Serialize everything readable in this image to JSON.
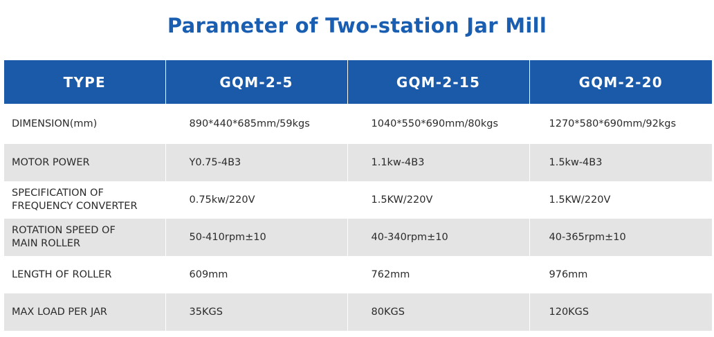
{
  "title": "Parameter of Two-station Jar Mill",
  "table": {
    "headers": [
      "TYPE",
      "GQM-2-5",
      "GQM-2-15",
      "GQM-2-20"
    ],
    "rows": [
      {
        "label": "DIMENSION(mm)",
        "values": [
          "890*440*685mm/59kgs",
          "1040*550*690mm/80kgs",
          "1270*580*690mm/92kgs"
        ]
      },
      {
        "label": "MOTOR POWER",
        "values": [
          "Y0.75-4B3",
          "1.1kw-4B3",
          "1.5kw-4B3"
        ]
      },
      {
        "label": "SPECIFICATION OF FREQUENCY CONVERTER",
        "label_lines": [
          "SPECIFICATION OF",
          "FREQUENCY CONVERTER"
        ],
        "values": [
          "0.75kw/220V",
          "1.5KW/220V",
          "1.5KW/220V"
        ]
      },
      {
        "label": "ROTATION SPEED OF MAIN ROLLER",
        "label_lines": [
          "ROTATION SPEED OF",
          "MAIN ROLLER"
        ],
        "values": [
          "50-410rpm±10",
          "40-340rpm±10",
          "40-365rpm±10"
        ]
      },
      {
        "label": "LENGTH OF ROLLER",
        "values": [
          "609mm",
          "762mm",
          "976mm"
        ]
      },
      {
        "label": "MAX LOAD PER JAR",
        "values": [
          "35KGS",
          "80KGS",
          "120KGS"
        ]
      }
    ]
  },
  "colors": {
    "title": "#1a5eb2",
    "header_bg": "#1a5aa9",
    "header_text": "#ffffff",
    "row_alt_bg": "#e4e4e4",
    "row_bg": "#ffffff",
    "body_text": "#2a2a2a"
  }
}
